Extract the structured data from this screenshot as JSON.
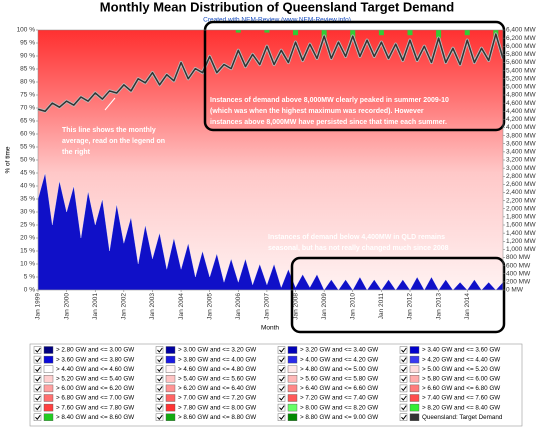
{
  "chart_data": {
    "type": "line",
    "title": "Monthly Mean Distribution of Queensland Target Demand",
    "subtitle": "Created with NEM-Review (www.NEM-Review.info)",
    "x_label": "Month",
    "y_label": "% of time",
    "categories": [
      "Jan 1999",
      null,
      null,
      null,
      "Jan 2000",
      null,
      null,
      null,
      "Jan 2001",
      null,
      null,
      null,
      "Jan 2002",
      null,
      null,
      null,
      "Jan 2003",
      null,
      null,
      null,
      "Jan 2004",
      null,
      null,
      null,
      "Jan 2005",
      null,
      null,
      null,
      "Jan 2006",
      null,
      null,
      null,
      "Jan 2007",
      null,
      null,
      null,
      "Jan 2008",
      null,
      null,
      null,
      "Jan 2009",
      null,
      null,
      null,
      "Jan 2010",
      null,
      null,
      null,
      "Jan 2011",
      null,
      null,
      null,
      "Jan 2012",
      null,
      null,
      null,
      "Jan 2013",
      null,
      null,
      null,
      "Jan 2014",
      null,
      null,
      null,
      null,
      null
    ],
    "series": [
      {
        "name": "Queensland: Target Demand",
        "color": "#333333",
        "axis": "y2",
        "values": [
          4450,
          4400,
          4600,
          4500,
          4650,
          4550,
          4750,
          4650,
          4850,
          4700,
          4900,
          4850,
          5050,
          4900,
          5200,
          5100,
          5350,
          5050,
          5300,
          5150,
          5600,
          5200,
          5450,
          5350,
          5750,
          5350,
          5550,
          5450,
          5900,
          5500,
          5800,
          5550,
          6000,
          5550,
          5900,
          5600,
          6100,
          5650,
          6050,
          5700,
          6250,
          5700,
          6100,
          5750,
          6250,
          5750,
          6150,
          5750,
          6100,
          5700,
          6050,
          5650,
          6150,
          5650,
          6000,
          5600,
          6200,
          5600,
          5950,
          5550,
          6150,
          5600,
          5950,
          5650,
          6300,
          5700
        ]
      }
    ],
    "area": {
      "color": "#1010c8",
      "values": [
        35,
        45,
        25,
        42,
        30,
        40,
        20,
        38,
        25,
        35,
        15,
        33,
        18,
        28,
        10,
        25,
        12,
        22,
        8,
        20,
        8,
        18,
        5,
        15,
        5,
        14,
        3,
        12,
        3,
        12,
        2,
        10,
        2,
        10,
        1,
        8,
        1,
        6,
        1,
        6,
        0,
        4,
        0,
        4,
        0,
        5,
        0,
        4,
        0,
        4,
        0,
        4,
        0,
        5,
        0,
        5,
        0,
        4,
        0,
        3,
        0,
        4,
        0,
        3,
        0,
        3
      ]
    },
    "peak": {
      "color": "#33cc33",
      "values": [
        0,
        0,
        0,
        0,
        0,
        0,
        0,
        0,
        0,
        0,
        0,
        0,
        0,
        0,
        0,
        0,
        0,
        0,
        0,
        0,
        0,
        0,
        0,
        0,
        0,
        0,
        0,
        0,
        1,
        0,
        0,
        0,
        1,
        0,
        0,
        0,
        2,
        0,
        0,
        0,
        3,
        0,
        0,
        0,
        4,
        0,
        0,
        0,
        2,
        0,
        0,
        0,
        2,
        0,
        0,
        0,
        3,
        0,
        0,
        0,
        2,
        0,
        0,
        0,
        3,
        0
      ]
    },
    "ylim": [
      0,
      100
    ],
    "yticks": [
      {
        "value": 0,
        "label": "0 %"
      },
      {
        "value": 5,
        "label": "5 %"
      },
      {
        "value": 10,
        "label": "10 %"
      },
      {
        "value": 15,
        "label": "15 %"
      },
      {
        "value": 20,
        "label": "20 %"
      },
      {
        "value": 25,
        "label": "25 %"
      },
      {
        "value": 30,
        "label": "30 %"
      },
      {
        "value": 35,
        "label": "35 %"
      },
      {
        "value": 40,
        "label": "40 %"
      },
      {
        "value": 45,
        "label": "45 %"
      },
      {
        "value": 50,
        "label": "50 %"
      },
      {
        "value": 55,
        "label": "55 %"
      },
      {
        "value": 60,
        "label": "60 %"
      },
      {
        "value": 65,
        "label": "65 %"
      },
      {
        "value": 70,
        "label": "70 %"
      },
      {
        "value": 75,
        "label": "75 %"
      },
      {
        "value": 80,
        "label": "80 %"
      },
      {
        "value": 85,
        "label": "85 %"
      },
      {
        "value": 90,
        "label": "90 %"
      },
      {
        "value": 95,
        "label": "95 %"
      },
      {
        "value": 100,
        "label": "100 %"
      }
    ],
    "y2lim": [
      0,
      6400
    ],
    "y2ticks": [
      {
        "value": 0,
        "label": "0 MW"
      },
      {
        "value": 200,
        "label": "200 MW"
      },
      {
        "value": 400,
        "label": "400 MW"
      },
      {
        "value": 600,
        "label": "600 MW"
      },
      {
        "value": 800,
        "label": "800 MW"
      },
      {
        "value": 1000,
        "label": "1,000 MW"
      },
      {
        "value": 1200,
        "label": "1,200 MW"
      },
      {
        "value": 1400,
        "label": "1,400 MW"
      },
      {
        "value": 1600,
        "label": "1,600 MW"
      },
      {
        "value": 1800,
        "label": "1,800 MW"
      },
      {
        "value": 2000,
        "label": "2,000 MW"
      },
      {
        "value": 2200,
        "label": "2,200 MW"
      },
      {
        "value": 2400,
        "label": "2,400 MW"
      },
      {
        "value": 2600,
        "label": "2,600 MW"
      },
      {
        "value": 2800,
        "label": "2,800 MW"
      },
      {
        "value": 3000,
        "label": "3,000 MW"
      },
      {
        "value": 3200,
        "label": "3,200 MW"
      },
      {
        "value": 3400,
        "label": "3,400 MW"
      },
      {
        "value": 3600,
        "label": "3,600 MW"
      },
      {
        "value": 3800,
        "label": "3,800 MW"
      },
      {
        "value": 4000,
        "label": "4,000 MW"
      },
      {
        "value": 4200,
        "label": "4,200 MW"
      },
      {
        "value": 4400,
        "label": "4,400 MW"
      },
      {
        "value": 4600,
        "label": "4,600 MW"
      },
      {
        "value": 4800,
        "label": "4,800 MW"
      },
      {
        "value": 5000,
        "label": "5,000 MW"
      },
      {
        "value": 5200,
        "label": "5,200 MW"
      },
      {
        "value": 5400,
        "label": "5,400 MW"
      },
      {
        "value": 5600,
        "label": "5,600 MW"
      },
      {
        "value": 5800,
        "label": "5,800 MW"
      },
      {
        "value": 6000,
        "label": "6,000 MW"
      },
      {
        "value": 6200,
        "label": "6,200 MW"
      },
      {
        "value": 6400,
        "label": "6,400 MW"
      }
    ],
    "annotations": [
      {
        "lines": [
          "Instances of demand above 8,000MW clearly peaked in summer 2009-10",
          "(which was when the highest maximum was recorded).  However",
          "instances above 8,000MW have persisted since that time each summer."
        ]
      },
      {
        "lines": [
          "This line shows the monthly",
          "average, read on the legend on",
          "the right"
        ]
      },
      {
        "lines": [
          "Instances of demand below 4,400MW in QLD remains",
          "seasonal, but has not really changed much since 2008"
        ]
      }
    ],
    "legend": [
      {
        "name": "> 2.80 GW and <= 3.00 GW",
        "color": "#000080"
      },
      {
        "name": "> 3.00 GW and <= 3.20 GW",
        "color": "#0000a0"
      },
      {
        "name": "> 3.20 GW and <= 3.40 GW",
        "color": "#0000b8"
      },
      {
        "name": "> 3.40 GW and <= 3.60 GW",
        "color": "#0000cc"
      },
      {
        "name": "> 3.60 GW and <= 3.80 GW",
        "color": "#0a0ad8"
      },
      {
        "name": "> 3.80 GW and <= 4.00 GW",
        "color": "#1a1ae0"
      },
      {
        "name": "> 4.00 GW and <= 4.20 GW",
        "color": "#2a2ae8"
      },
      {
        "name": "> 4.20 GW and <= 4.40 GW",
        "color": "#3a3af0"
      },
      {
        "name": "> 4.40 GW and <= 4.60 GW",
        "color": "#ffffff"
      },
      {
        "name": "> 4.60 GW and <= 4.80 GW",
        "color": "#fff4f4"
      },
      {
        "name": "> 4.80 GW and <= 5.00 GW",
        "color": "#ffe8e8"
      },
      {
        "name": "> 5.00 GW and <= 5.20 GW",
        "color": "#ffdcdc"
      },
      {
        "name": "> 5.20 GW and <= 5.40 GW",
        "color": "#ffd0d0"
      },
      {
        "name": "> 5.40 GW and <= 5.60 GW",
        "color": "#ffc4c4"
      },
      {
        "name": "> 5.60 GW and <= 5.80 GW",
        "color": "#ffb8b8"
      },
      {
        "name": "> 5.80 GW and <= 6.00 GW",
        "color": "#ffacac"
      },
      {
        "name": "> 6.00 GW and <= 6.20 GW",
        "color": "#ffa0a0"
      },
      {
        "name": "> 6.20 GW and <= 6.40 GW",
        "color": "#ff9494"
      },
      {
        "name": "> 6.40 GW and <= 6.60 GW",
        "color": "#ff8888"
      },
      {
        "name": "> 6.60 GW and <= 6.80 GW",
        "color": "#ff7c7c"
      },
      {
        "name": "> 6.80 GW and <= 7.00 GW",
        "color": "#ff7070"
      },
      {
        "name": "> 7.00 GW and <= 7.20 GW",
        "color": "#ff6464"
      },
      {
        "name": "> 7.20 GW and <= 7.40 GW",
        "color": "#ff5858"
      },
      {
        "name": "> 7.40 GW and <= 7.60 GW",
        "color": "#ff4c4c"
      },
      {
        "name": "> 7.60 GW and <= 7.80 GW",
        "color": "#ff4040"
      },
      {
        "name": "> 7.80 GW and <= 8.00 GW",
        "color": "#ff3434"
      },
      {
        "name": "> 8.00 GW and <= 8.20 GW",
        "color": "#66ff66"
      },
      {
        "name": "> 8.20 GW and <= 8.40 GW",
        "color": "#33ee33"
      },
      {
        "name": "> 8.40 GW and <= 8.60 GW",
        "color": "#22cc22"
      },
      {
        "name": "> 8.60 GW and <= 8.80 GW",
        "color": "#11aa11"
      },
      {
        "name": "> 8.80 GW and <= 9.00 GW",
        "color": "#008800"
      },
      {
        "name": "Queensland: Target Demand",
        "color": "#333333"
      }
    ]
  }
}
